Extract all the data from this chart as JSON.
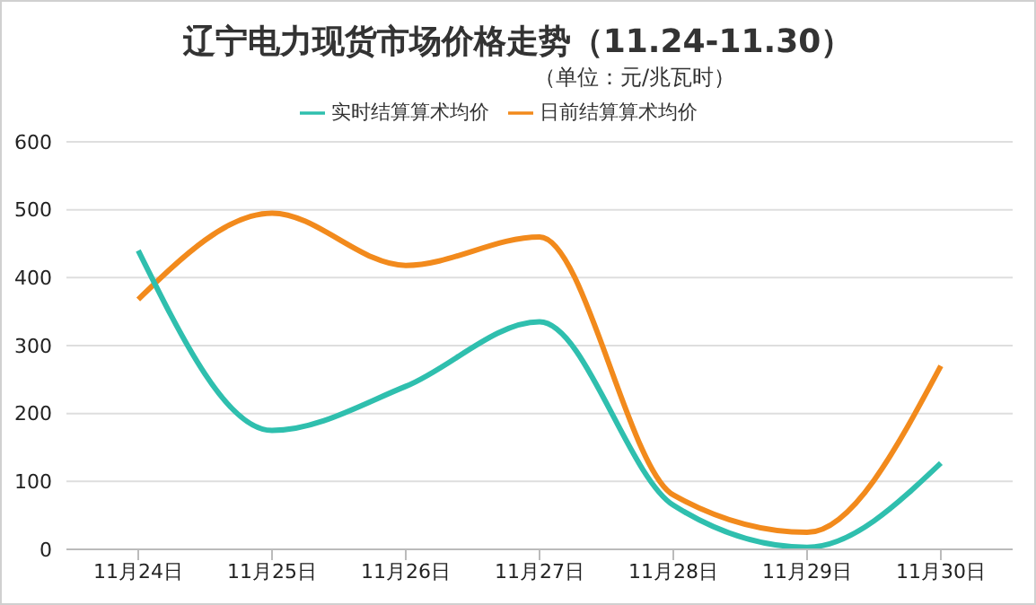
{
  "chart_data": {
    "type": "line",
    "title": "辽宁电力现货市场价格走势（11.24-11.30）",
    "subtitle": "（单位：元/兆瓦时）",
    "categories": [
      "11月24日",
      "11月25日",
      "11月26日",
      "11月27日",
      "11月28日",
      "11月29日",
      "11月30日"
    ],
    "series": [
      {
        "name": "日前结算算术均价",
        "color": "#f28a1c",
        "values": [
          368,
          495,
          418,
          460,
          80,
          25,
          270
        ]
      },
      {
        "name": "实时结算算术均价",
        "color": "#2fbfae",
        "values": [
          440,
          175,
          240,
          335,
          65,
          3,
          127
        ]
      }
    ],
    "ylim": [
      0,
      600
    ],
    "yticks": [
      0,
      100,
      200,
      300,
      400,
      500,
      600
    ],
    "grid": "y",
    "legend": "top",
    "marker": "none",
    "line_style": "solid"
  }
}
